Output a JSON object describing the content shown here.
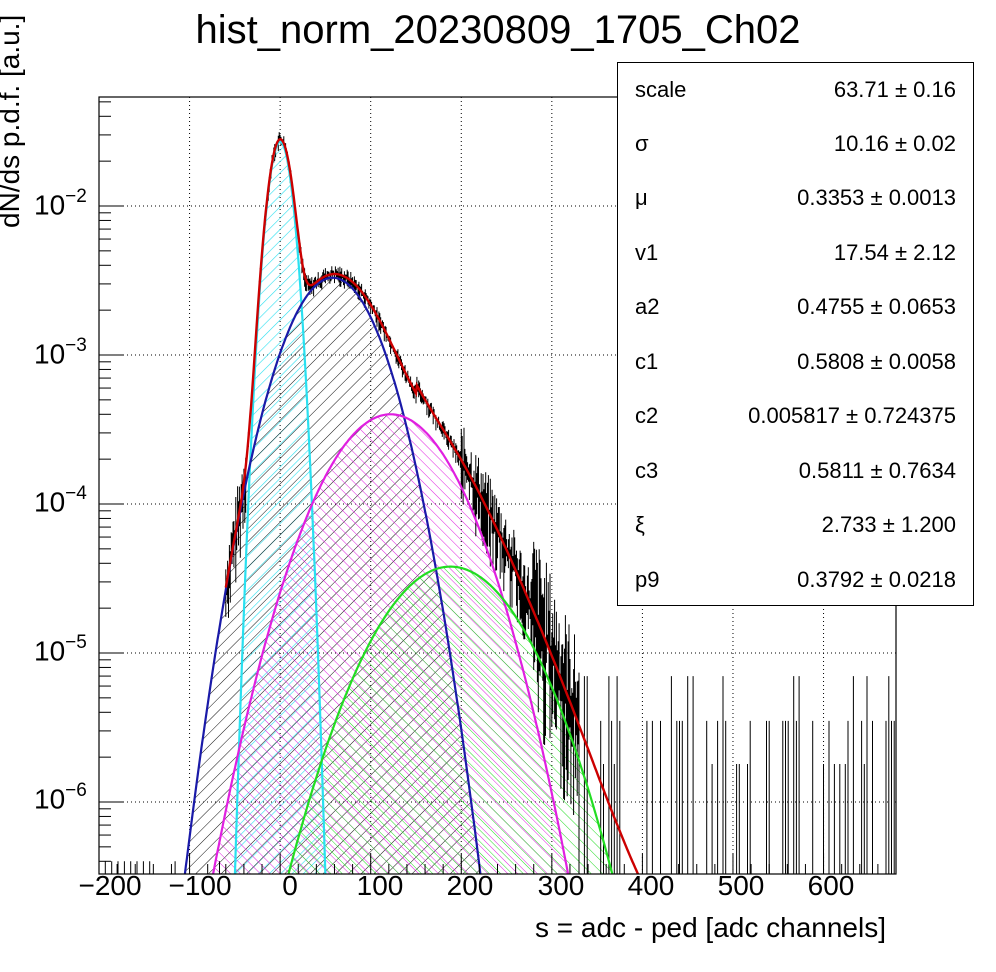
{
  "chart_data": {
    "type": "area",
    "title": "hist_norm_20230809_1705_Ch02",
    "xlabel": "s = adc - ped [adc channels]",
    "ylabel": "dN/ds p.d.f. [a.u.]",
    "xlim": [
      -200,
      680
    ],
    "ylim": [
      3e-07,
      0.06
    ],
    "yscale": "log",
    "grid": true,
    "x_ticks": [
      "−200",
      "−100",
      "0",
      "100",
      "200",
      "300",
      "400",
      "500",
      "600"
    ],
    "y_ticks": [
      {
        "base": "10",
        "exp": "−2"
      },
      {
        "base": "10",
        "exp": "−3"
      },
      {
        "base": "10",
        "exp": "−4"
      },
      {
        "base": "10",
        "exp": "−5"
      },
      {
        "base": "10",
        "exp": "−6"
      }
    ],
    "series": [
      {
        "peak_x": 0,
        "peak_y": 0.027,
        "sigma": 10.5,
        "color": "#29e0f0",
        "fill": "hatch-cyan"
      },
      {
        "peak_x": 58,
        "peak_y": 0.0033,
        "sigma": 38,
        "color": "#1a1aa8",
        "fill": "hatch-black"
      },
      {
        "peak_x": 122,
        "peak_y": 0.0004,
        "sigma": 52,
        "color": "#e020e0",
        "fill": "hatch-magenta"
      },
      {
        "peak_x": 188,
        "peak_y": 3.8e-05,
        "sigma": 58,
        "color": "#22dd22",
        "fill": "hatch-green"
      }
    ],
    "total_color": "#cc0000",
    "data_color": "#000000"
  },
  "stats": [
    {
      "name": "scale",
      "value": "63.71 ± 0.16"
    },
    {
      "name": "σ",
      "value": "10.16 ± 0.02"
    },
    {
      "name": "μ",
      "value": "0.3353 ± 0.0013"
    },
    {
      "name": "v1",
      "value": "17.54 ± 2.12"
    },
    {
      "name": "a2",
      "value": "0.4755 ± 0.0653"
    },
    {
      "name": "c1",
      "value": "0.5808 ± 0.0058"
    },
    {
      "name": "c2",
      "value": "0.005817 ± 0.724375"
    },
    {
      "name": "c3",
      "value": "0.5811 ± 0.7634"
    },
    {
      "name": "ξ",
      "value": "2.733 ± 1.200"
    },
    {
      "name": "p9",
      "value": "0.3792 ± 0.0218"
    }
  ]
}
